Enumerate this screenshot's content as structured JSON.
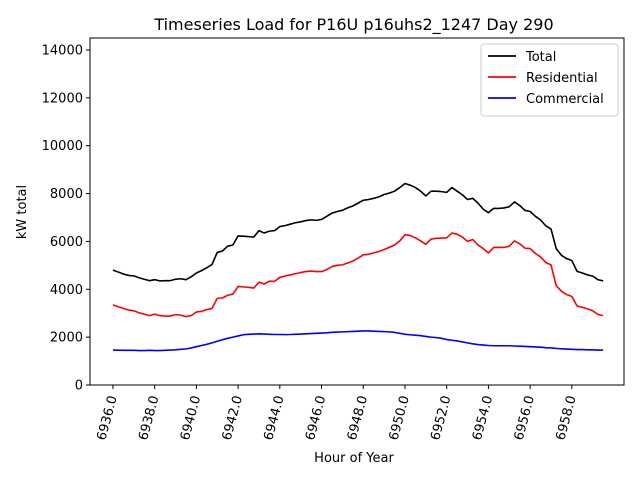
{
  "chart_data": {
    "type": "line",
    "title": "Timeseries Load for P16U p16uhs2_1247  Day 290",
    "xlabel": "Hour of Year",
    "ylabel": "kW total",
    "xlim": [
      6934.9,
      6960.5
    ],
    "ylim": [
      0,
      14500
    ],
    "xticks": [
      6936,
      6938,
      6940,
      6942,
      6944,
      6946,
      6948,
      6950,
      6952,
      6954,
      6956,
      6958
    ],
    "xtick_labels": [
      "6936.0",
      "6938.0",
      "6940.0",
      "6942.0",
      "6944.0",
      "6946.0",
      "6948.0",
      "6950.0",
      "6952.0",
      "6954.0",
      "6956.0",
      "6958.0"
    ],
    "yticks": [
      0,
      2000,
      4000,
      6000,
      8000,
      10000,
      12000,
      14000
    ],
    "ytick_labels": [
      "0",
      "2000",
      "4000",
      "6000",
      "8000",
      "10000",
      "12000",
      "14000"
    ],
    "legend_position": "top-right",
    "x": [
      6936.0,
      6936.25,
      6936.5,
      6936.75,
      6937.0,
      6937.25,
      6937.5,
      6937.75,
      6938.0,
      6938.25,
      6938.5,
      6938.75,
      6939.0,
      6939.25,
      6939.5,
      6939.75,
      6940.0,
      6940.25,
      6940.5,
      6940.75,
      6941.0,
      6941.25,
      6941.5,
      6941.75,
      6942.0,
      6942.25,
      6942.5,
      6942.75,
      6943.0,
      6943.25,
      6943.5,
      6943.75,
      6944.0,
      6944.25,
      6944.5,
      6944.75,
      6945.0,
      6945.25,
      6945.5,
      6945.75,
      6946.0,
      6946.25,
      6946.5,
      6946.75,
      6947.0,
      6947.25,
      6947.5,
      6947.75,
      6948.0,
      6948.25,
      6948.5,
      6948.75,
      6949.0,
      6949.25,
      6949.5,
      6949.75,
      6950.0,
      6950.25,
      6950.5,
      6950.75,
      6951.0,
      6951.25,
      6951.5,
      6951.75,
      6952.0,
      6952.25,
      6952.5,
      6952.75,
      6953.0,
      6953.25,
      6953.5,
      6953.75,
      6954.0,
      6954.25,
      6954.5,
      6954.75,
      6955.0,
      6955.25,
      6955.5,
      6955.75,
      6956.0,
      6956.25,
      6956.5,
      6956.75,
      6957.0,
      6957.25,
      6957.5,
      6957.75,
      6958.0,
      6958.25,
      6958.5,
      6958.75,
      6959.0,
      6959.25,
      6959.5
    ],
    "series": [
      {
        "name": "Total",
        "color": "#000000",
        "values": [
          4800,
          4720,
          4640,
          4580,
          4560,
          4480,
          4420,
          4360,
          4400,
          4350,
          4360,
          4360,
          4420,
          4440,
          4400,
          4520,
          4680,
          4780,
          4900,
          5040,
          5540,
          5600,
          5800,
          5850,
          6230,
          6220,
          6200,
          6180,
          6450,
          6350,
          6430,
          6450,
          6620,
          6660,
          6720,
          6780,
          6820,
          6870,
          6900,
          6880,
          6920,
          7050,
          7180,
          7250,
          7300,
          7400,
          7480,
          7600,
          7720,
          7750,
          7800,
          7860,
          7960,
          8020,
          8100,
          8250,
          8420,
          8350,
          8250,
          8100,
          7900,
          8100,
          8100,
          8080,
          8050,
          8250,
          8100,
          7950,
          7750,
          7800,
          7600,
          7350,
          7200,
          7380,
          7380,
          7400,
          7450,
          7650,
          7500,
          7300,
          7250,
          7050,
          6900,
          6650,
          6520,
          5700,
          5420,
          5280,
          5200,
          4750,
          4680,
          4600,
          4550,
          4400,
          4350
        ]
      },
      {
        "name": "Residential",
        "color": "#ff0000",
        "values": [
          3350,
          3270,
          3200,
          3130,
          3100,
          3020,
          2960,
          2900,
          2960,
          2900,
          2880,
          2880,
          2940,
          2920,
          2860,
          2900,
          3050,
          3080,
          3150,
          3200,
          3620,
          3640,
          3750,
          3800,
          4120,
          4100,
          4080,
          4050,
          4300,
          4220,
          4340,
          4330,
          4500,
          4550,
          4600,
          4650,
          4700,
          4740,
          4760,
          4740,
          4740,
          4820,
          4950,
          5000,
          5020,
          5100,
          5180,
          5300,
          5440,
          5460,
          5520,
          5580,
          5660,
          5750,
          5850,
          6020,
          6280,
          6250,
          6150,
          6020,
          5880,
          6100,
          6130,
          6140,
          6150,
          6350,
          6300,
          6180,
          6000,
          6080,
          5850,
          5700,
          5520,
          5750,
          5750,
          5750,
          5800,
          6020,
          5900,
          5720,
          5700,
          5500,
          5350,
          5120,
          5020,
          4150,
          3920,
          3780,
          3700,
          3300,
          3250,
          3180,
          3100,
          2950,
          2900
        ]
      },
      {
        "name": "Commercial",
        "color": "#0000ff",
        "values": [
          1460,
          1455,
          1450,
          1450,
          1450,
          1440,
          1440,
          1450,
          1440,
          1440,
          1450,
          1460,
          1470,
          1490,
          1510,
          1550,
          1600,
          1650,
          1700,
          1760,
          1830,
          1890,
          1950,
          2000,
          2050,
          2100,
          2120,
          2130,
          2140,
          2130,
          2120,
          2110,
          2110,
          2105,
          2110,
          2120,
          2130,
          2140,
          2150,
          2160,
          2170,
          2180,
          2200,
          2210,
          2220,
          2230,
          2240,
          2250,
          2260,
          2260,
          2250,
          2240,
          2230,
          2220,
          2200,
          2160,
          2120,
          2100,
          2080,
          2060,
          2030,
          2000,
          1980,
          1950,
          1900,
          1870,
          1840,
          1800,
          1760,
          1720,
          1690,
          1670,
          1650,
          1640,
          1640,
          1640,
          1640,
          1630,
          1620,
          1610,
          1600,
          1590,
          1580,
          1560,
          1550,
          1530,
          1510,
          1500,
          1490,
          1480,
          1480,
          1470,
          1470,
          1460,
          1460
        ]
      }
    ]
  }
}
